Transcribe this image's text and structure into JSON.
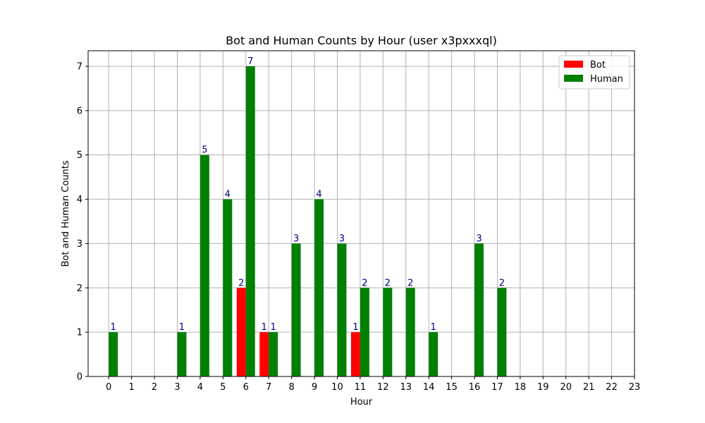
{
  "chart_data": {
    "type": "bar",
    "title": "Bot and Human Counts by Hour (user x3pxxxql)",
    "xlabel": "Hour",
    "ylabel": "Bot and Human Counts",
    "categories": [
      "0",
      "1",
      "2",
      "3",
      "4",
      "5",
      "6",
      "7",
      "8",
      "9",
      "10",
      "11",
      "12",
      "13",
      "14",
      "15",
      "16",
      "17",
      "18",
      "19",
      "20",
      "21",
      "22",
      "23"
    ],
    "series": [
      {
        "name": "Bot",
        "color": "#ff0000",
        "values": [
          0,
          0,
          0,
          0,
          0,
          0,
          2,
          1,
          0,
          0,
          0,
          1,
          0,
          0,
          0,
          0,
          0,
          0,
          0,
          0,
          0,
          0,
          0,
          0
        ]
      },
      {
        "name": "Human",
        "color": "#008000",
        "values": [
          1,
          0,
          0,
          1,
          5,
          4,
          7,
          1,
          3,
          4,
          3,
          2,
          2,
          2,
          1,
          0,
          3,
          2,
          0,
          0,
          0,
          0,
          0,
          0
        ]
      }
    ],
    "ylim": [
      0,
      7.35
    ],
    "yticks": [
      0,
      1,
      2,
      3,
      4,
      5,
      6,
      7
    ],
    "grid": true,
    "legend_position": "top-right",
    "data_label_color": "#000080"
  }
}
